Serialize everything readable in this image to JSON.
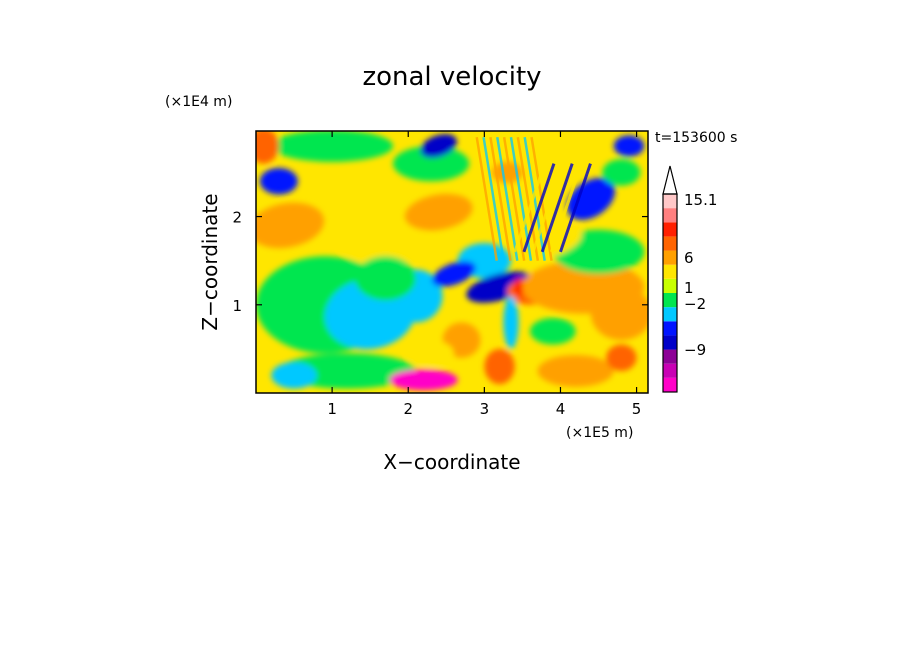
{
  "chart_data": {
    "type": "heatmap",
    "title": "zonal velocity",
    "xlabel": "X−coordinate",
    "ylabel": "Z−coordinate",
    "x_unit": "(×1E5 m)",
    "y_unit": "(×1E4 m)",
    "time_label": "t=153600 s",
    "xlim": [
      0,
      5.15
    ],
    "ylim": [
      0,
      2.97
    ],
    "x_ticks": [
      "1",
      "2",
      "3",
      "4",
      "5"
    ],
    "y_ticks": [
      "1",
      "2"
    ],
    "colorbar": {
      "labels": [
        "15.1",
        "6",
        "1",
        "−2",
        "−9"
      ],
      "colors": [
        "#ff00c8",
        "#c800b4",
        "#8c0096",
        "#0000c8",
        "#0014ff",
        "#00c8ff",
        "#00e650",
        "#c8ff00",
        "#ffe600",
        "#ffa000",
        "#ff6400",
        "#ff2000",
        "#ff8080",
        "#ffc8c8"
      ]
    }
  }
}
